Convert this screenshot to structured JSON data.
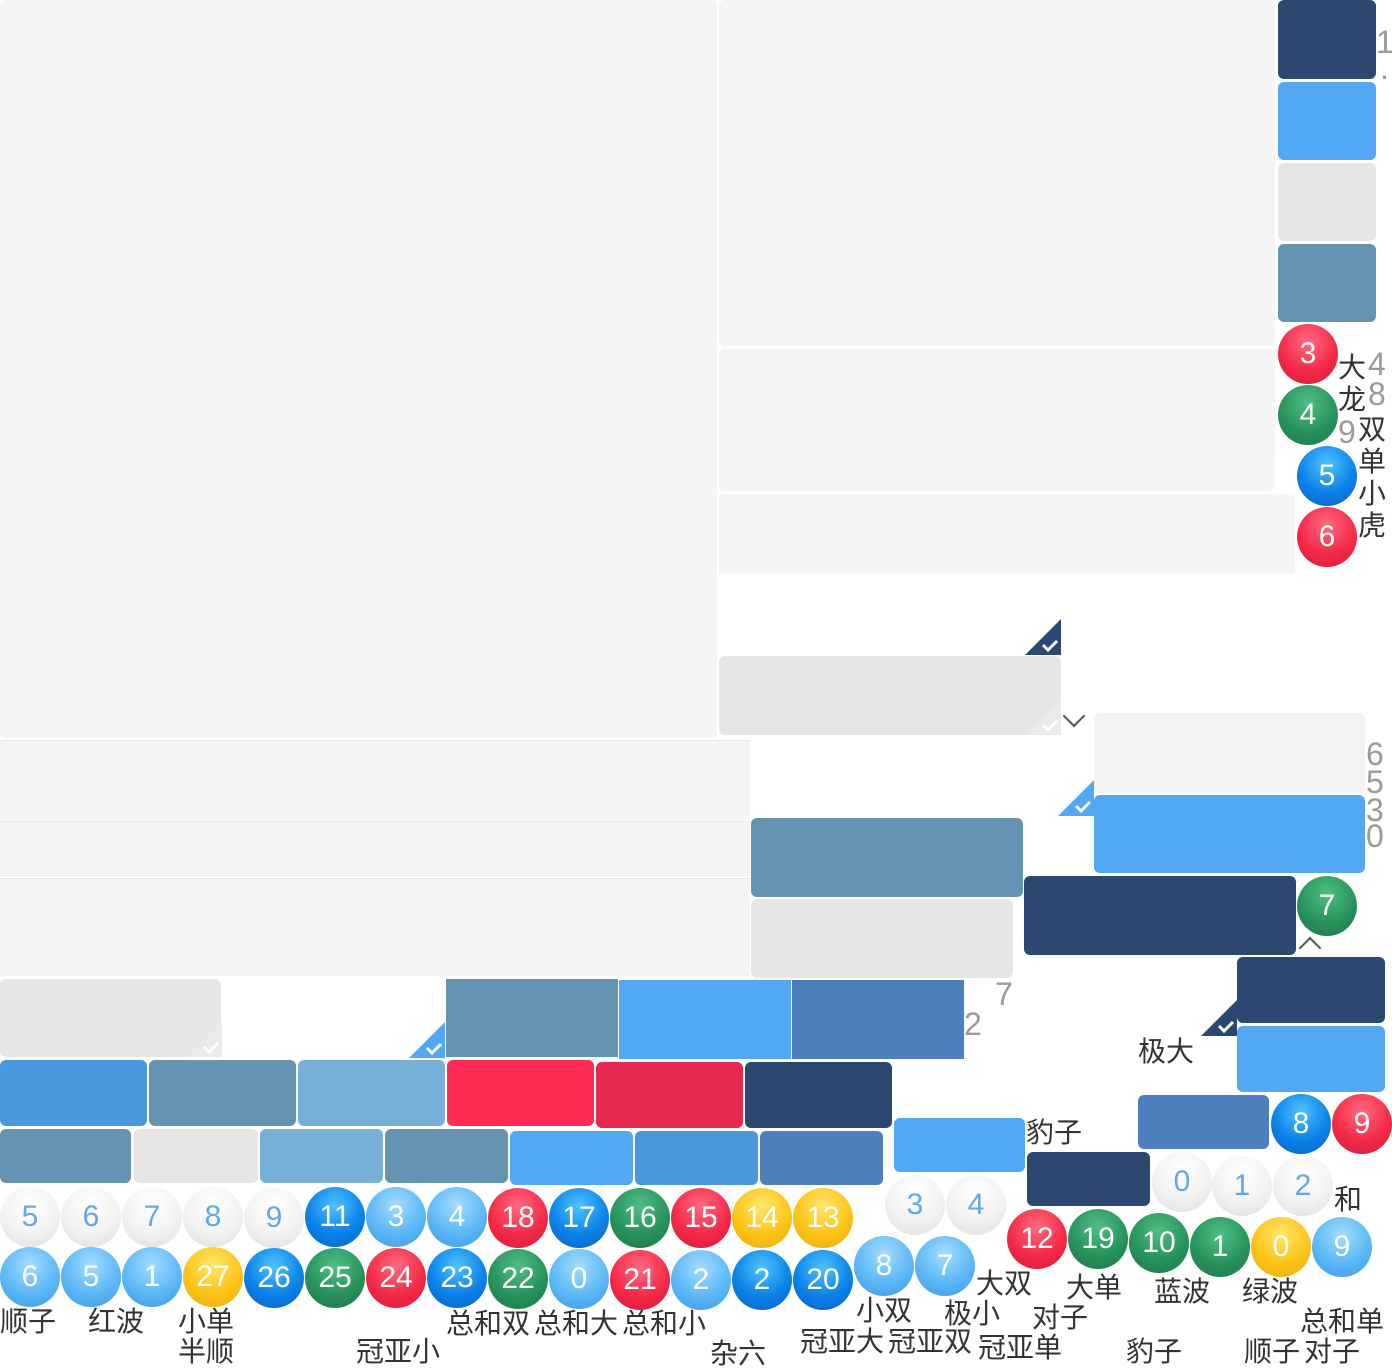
{
  "colors": {
    "navy": "#2c4870",
    "sky": "#52a8f2",
    "grey": "#e6e6e6",
    "steel": "#6593b2",
    "blue": "#4d7fbf",
    "mid": "#4a97dd",
    "soft": "#76b0d6",
    "red": "#fe2b52",
    "crimson": "#e8284f"
  },
  "icons": {
    "check_corner": "check-corner-icon",
    "chevron_down": "chevron-down-icon",
    "chevron_up": "chevron-up-icon"
  },
  "digits": {
    "top_right_1": "1",
    "top_right_dot": ".",
    "side_4": "4",
    "side_8": "8",
    "side_9": "9",
    "col_6": "6",
    "col_5": "5",
    "col_3": "3",
    "col_0": "0",
    "mid_7": "7",
    "mid_2": "2"
  },
  "side_labels": {
    "da": "大",
    "long": "龙",
    "shuang": "双",
    "dan": "单",
    "xiao": "小",
    "hu": "虎"
  },
  "side_balls": [
    "3",
    "4",
    "5",
    "6"
  ],
  "ball_7": "7",
  "labels": {
    "jida": "极大",
    "baozi_1": "豹子",
    "he": "和",
    "shunzi": "顺子",
    "hongbo": "红波",
    "xiaodan": "小单",
    "banshun": "半顺",
    "guanyaxiao": "冠亚小",
    "zonghe_shuang": "总和双",
    "zonghe_da": "总和大",
    "zonghe_xiao": "总和小",
    "zaliu": "杂六",
    "xiaoshuang": "小双",
    "guanyada": "冠亚大",
    "guanyashuang": "冠亚双",
    "jixiao": "极小",
    "dashuang": "大双",
    "duizi": "对子",
    "guanyadan": "冠亚单",
    "dadan": "大单",
    "lanbo": "蓝波",
    "baozi_2": "豹子",
    "lvbo": "绿波",
    "zonghedan": "总和单",
    "shunzi_2": "顺子",
    "duizi_2": "对子"
  },
  "row1_balls": [
    "5",
    "6",
    "7",
    "8",
    "9",
    "11",
    "3",
    "4",
    "18",
    "17",
    "16",
    "15",
    "14",
    "13"
  ],
  "row2_balls": [
    "6",
    "5",
    "1",
    "27",
    "26",
    "25",
    "24",
    "23",
    "22",
    "0",
    "21",
    "2",
    "2",
    "20"
  ],
  "right_balls": {
    "b8": "8",
    "b9": "9",
    "b0w": "0",
    "b1w": "1",
    "b2w": "2",
    "b3w": "3",
    "b4w": "4",
    "b8l": "8",
    "b7l": "7",
    "b12": "12",
    "b19": "19",
    "b10": "10",
    "b1g": "1",
    "b0y": "0",
    "b9l": "9"
  }
}
